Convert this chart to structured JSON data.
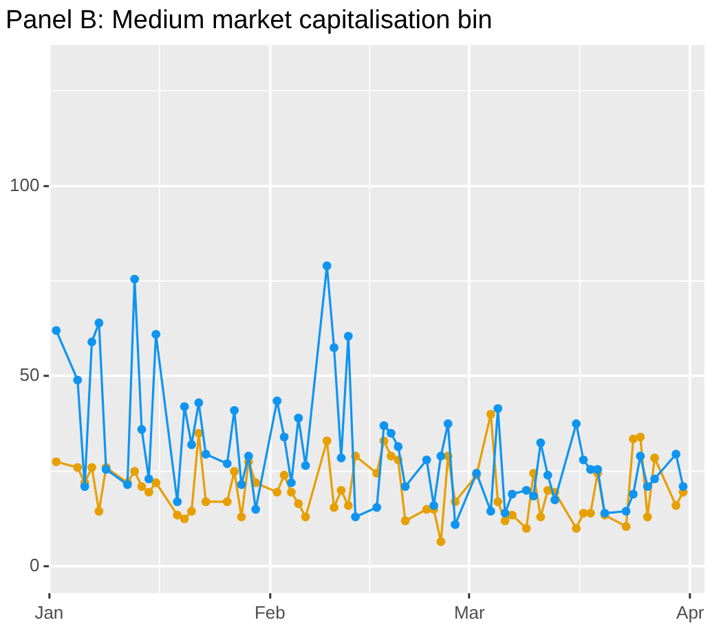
{
  "chart_data": {
    "type": "line",
    "title": "Panel B: Medium market capitalisation bin",
    "series": [
      {
        "color": "#0f94f0",
        "x": [
          "--01-02",
          "--01-05",
          "--01-06",
          "--01-07",
          "--01-08",
          "--01-09",
          "--01-12",
          "--01-13",
          "--01-14",
          "--01-15",
          "--01-16",
          "--01-19",
          "--01-20",
          "--01-21",
          "--01-22",
          "--01-23",
          "--01-26",
          "--01-27",
          "--01-28",
          "--01-29",
          "--01-30",
          "--02-02",
          "--02-03",
          "--02-04",
          "--02-05",
          "--02-06",
          "--02-09",
          "--02-10",
          "--02-11",
          "--02-12",
          "--02-13",
          "--02-16",
          "--02-17",
          "--02-18",
          "--02-19",
          "--02-20",
          "--02-23",
          "--02-24",
          "--02-25",
          "--02-26",
          "--02-27",
          "--03-02",
          "--03-04",
          "--03-05",
          "--03-06",
          "--03-07",
          "--03-09",
          "--03-10",
          "--03-11",
          "--03-12",
          "--03-13",
          "--03-16",
          "--03-17",
          "--03-18",
          "--03-19",
          "--03-20",
          "--03-23",
          "--03-24",
          "--03-25",
          "--03-26",
          "--03-27",
          "--03-30",
          "--03-31"
        ],
        "values": [
          62,
          49,
          21,
          59,
          64,
          25.5,
          21.5,
          75.5,
          36,
          23,
          61,
          17,
          42,
          32,
          43,
          29.5,
          27,
          41,
          21.5,
          29,
          15,
          43.5,
          34,
          22,
          39,
          26.5,
          79,
          57.5,
          28.5,
          60.5,
          13,
          15.5,
          37,
          35,
          31.5,
          21,
          28,
          16,
          29,
          37.5,
          11,
          24.5,
          14.5,
          41.5,
          14,
          19,
          20,
          18.5,
          32.5,
          24,
          17.5,
          37.5,
          28,
          25.5,
          25.5,
          14,
          14.5,
          19,
          29,
          21,
          23,
          29.5,
          21
        ]
      },
      {
        "color": "#e69f00",
        "x": [
          "--01-02",
          "--01-05",
          "--01-06",
          "--01-07",
          "--01-08",
          "--01-09",
          "--01-12",
          "--01-13",
          "--01-14",
          "--01-15",
          "--01-16",
          "--01-19",
          "--01-20",
          "--01-21",
          "--01-22",
          "--01-23",
          "--01-26",
          "--01-27",
          "--01-28",
          "--01-29",
          "--01-30",
          "--02-02",
          "--02-03",
          "--02-04",
          "--02-05",
          "--02-06",
          "--02-09",
          "--02-10",
          "--02-11",
          "--02-12",
          "--02-13",
          "--02-16",
          "--02-17",
          "--02-18",
          "--02-19",
          "--02-20",
          "--02-23",
          "--02-24",
          "--02-25",
          "--02-26",
          "--02-27",
          "--03-02",
          "--03-04",
          "--03-05",
          "--03-06",
          "--03-07",
          "--03-09",
          "--03-10",
          "--03-11",
          "--03-12",
          "--03-13",
          "--03-16",
          "--03-17",
          "--03-18",
          "--03-19",
          "--03-20",
          "--03-23",
          "--03-24",
          "--03-25",
          "--03-26",
          "--03-27",
          "--03-30",
          "--03-31"
        ],
        "values": [
          27.5,
          26,
          22,
          26,
          14.5,
          26,
          22,
          25,
          21,
          19.5,
          22,
          13.5,
          12.5,
          14.5,
          35,
          17,
          17,
          25,
          13,
          27.5,
          22,
          19.5,
          24,
          19.5,
          16.5,
          13,
          33,
          15.5,
          20,
          16,
          29,
          24.5,
          33,
          29,
          28,
          12,
          15,
          15,
          6.5,
          29,
          17,
          24,
          40,
          17,
          12,
          13.5,
          10,
          24.5,
          13,
          20,
          19.5,
          10,
          14,
          14,
          24.5,
          13.5,
          10.5,
          33.5,
          34,
          13,
          28.5,
          16,
          19.5
        ]
      }
    ],
    "xlim": [
      "--01-01",
      "--04-03"
    ],
    "xticks": [
      {
        "value": "--01-01",
        "label": "Jan"
      },
      {
        "value": "--02-01",
        "label": "Feb"
      },
      {
        "value": "--03-01",
        "label": "Mar"
      },
      {
        "value": "--04-01",
        "label": "Apr"
      }
    ],
    "ylim": [
      -7,
      137
    ],
    "yticks": [
      0,
      50,
      100
    ],
    "grid": true,
    "marker": "circle",
    "line_style": "solid",
    "legend": false
  }
}
